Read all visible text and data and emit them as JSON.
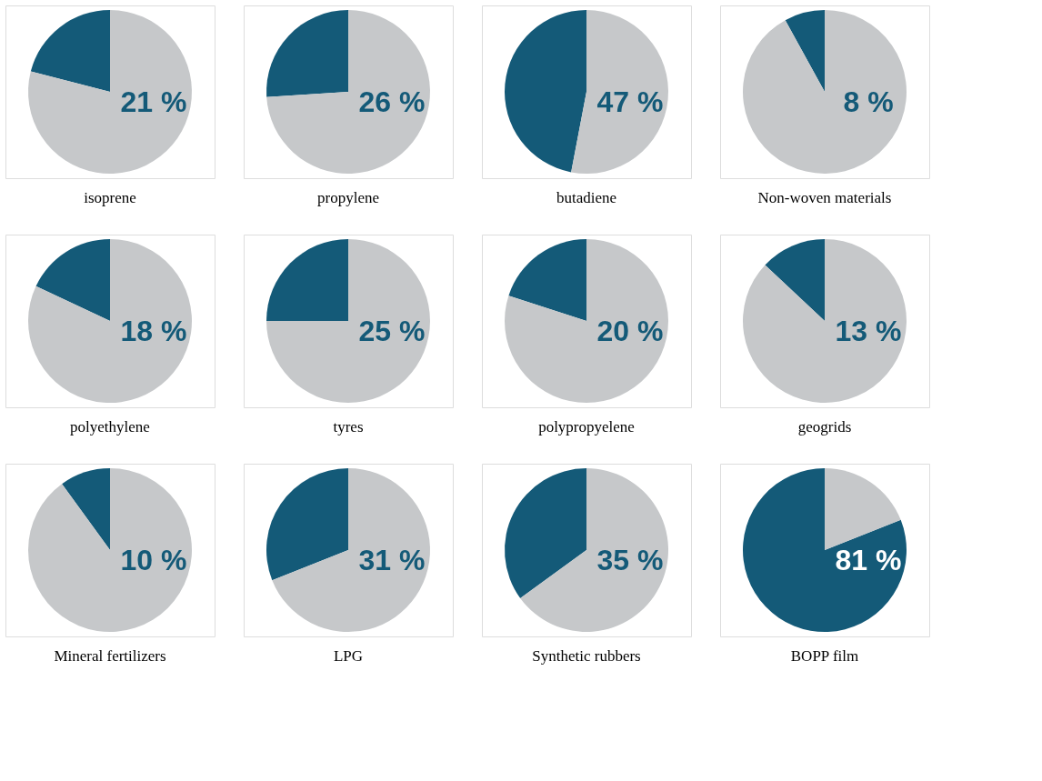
{
  "chart_data": [
    {
      "type": "pie",
      "title": "isoprene",
      "categories": [
        null,
        null
      ],
      "values": [
        21,
        79
      ],
      "colors": [
        "#145a78",
        "#c6c8ca"
      ],
      "annotations": [
        "21 %"
      ]
    },
    {
      "type": "pie",
      "title": "propylene",
      "categories": [
        null,
        null
      ],
      "values": [
        26,
        74
      ],
      "colors": [
        "#145a78",
        "#c6c8ca"
      ],
      "annotations": [
        "26 %"
      ]
    },
    {
      "type": "pie",
      "title": "butadiene",
      "categories": [
        null,
        null
      ],
      "values": [
        47,
        53
      ],
      "colors": [
        "#145a78",
        "#c6c8ca"
      ],
      "annotations": [
        "47 %"
      ]
    },
    {
      "type": "pie",
      "title": "Non-woven materials",
      "categories": [
        null,
        null
      ],
      "values": [
        8,
        92
      ],
      "colors": [
        "#145a78",
        "#c6c8ca"
      ],
      "annotations": [
        "8 %"
      ]
    },
    {
      "type": "pie",
      "title": "polyethylene",
      "categories": [
        null,
        null
      ],
      "values": [
        18,
        82
      ],
      "colors": [
        "#145a78",
        "#c6c8ca"
      ],
      "annotations": [
        "18 %"
      ]
    },
    {
      "type": "pie",
      "title": "tyres",
      "categories": [
        null,
        null
      ],
      "values": [
        25,
        75
      ],
      "colors": [
        "#145a78",
        "#c6c8ca"
      ],
      "annotations": [
        "25 %"
      ]
    },
    {
      "type": "pie",
      "title": "polypropyelene",
      "categories": [
        null,
        null
      ],
      "values": [
        20,
        80
      ],
      "colors": [
        "#145a78",
        "#c6c8ca"
      ],
      "annotations": [
        "20 %"
      ]
    },
    {
      "type": "pie",
      "title": "geogrids",
      "categories": [
        null,
        null
      ],
      "values": [
        13,
        87
      ],
      "colors": [
        "#145a78",
        "#c6c8ca"
      ],
      "annotations": [
        "13 %"
      ]
    },
    {
      "type": "pie",
      "title": "Mineral fertilizers",
      "categories": [
        null,
        null
      ],
      "values": [
        10,
        90
      ],
      "colors": [
        "#145a78",
        "#c6c8ca"
      ],
      "annotations": [
        "10 %"
      ]
    },
    {
      "type": "pie",
      "title": "LPG",
      "categories": [
        null,
        null
      ],
      "values": [
        31,
        69
      ],
      "colors": [
        "#145a78",
        "#c6c8ca"
      ],
      "annotations": [
        "31 %"
      ]
    },
    {
      "type": "pie",
      "title": "Synthetic rubbers",
      "categories": [
        null,
        null
      ],
      "values": [
        35,
        65
      ],
      "colors": [
        "#145a78",
        "#c6c8ca"
      ],
      "annotations": [
        "35 %"
      ]
    },
    {
      "type": "pie",
      "title": "BOPP film",
      "categories": [
        null,
        null
      ],
      "values": [
        81,
        19
      ],
      "colors": [
        "#145a78",
        "#c6c8ca"
      ],
      "annotations": [
        "81 %"
      ]
    }
  ]
}
